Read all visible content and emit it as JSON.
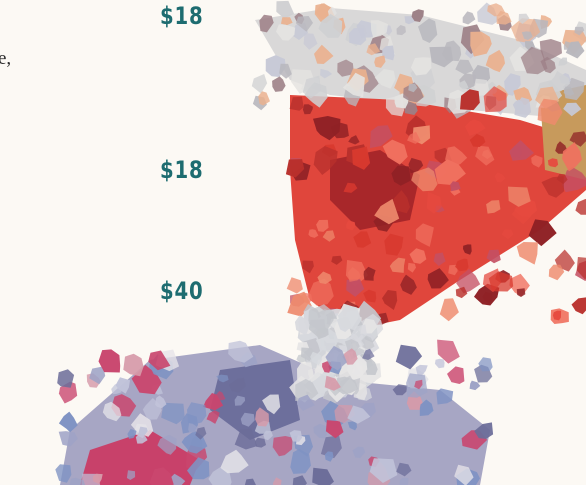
{
  "text_fragment": "e,",
  "prices": [
    "$18",
    "$18",
    "$40"
  ]
}
